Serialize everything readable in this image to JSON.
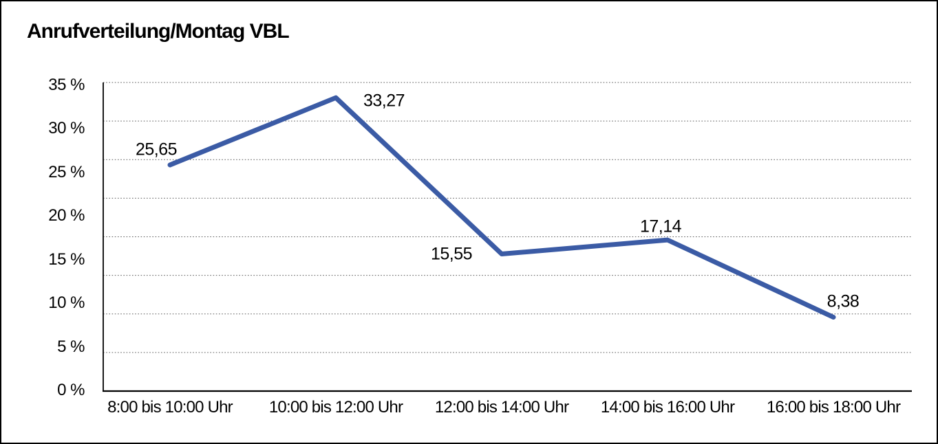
{
  "title": "Anrufverteilung/Montag VBL",
  "chart_data": {
    "type": "line",
    "title": "Anrufverteilung/Montag VBL",
    "categories": [
      "8:00 bis 10:00 Uhr",
      "10:00 bis 12:00 Uhr",
      "12:00 bis 14:00 Uhr",
      "14:00 bis 16:00 Uhr",
      "16:00 bis 18:00 Uhr"
    ],
    "values": [
      25.65,
      33.27,
      15.55,
      17.14,
      8.38
    ],
    "point_labels": [
      "25,65",
      "33,27",
      "15,55",
      "17,14",
      "8,38"
    ],
    "y_ticks": [
      "35 %",
      "30 %",
      "25 %",
      "20 %",
      "15 %",
      "10 %",
      "5 %",
      "0 %"
    ],
    "ylim": [
      0,
      35
    ],
    "xlabel": "",
    "ylabel": "",
    "grid": "horizontal-dotted",
    "legend": "none",
    "line_color": "#3B5BA5",
    "axis_color": "#000000",
    "gridline_color": "#5a5a5a",
    "label_color": "#000000",
    "background_color": "#ffffff"
  }
}
